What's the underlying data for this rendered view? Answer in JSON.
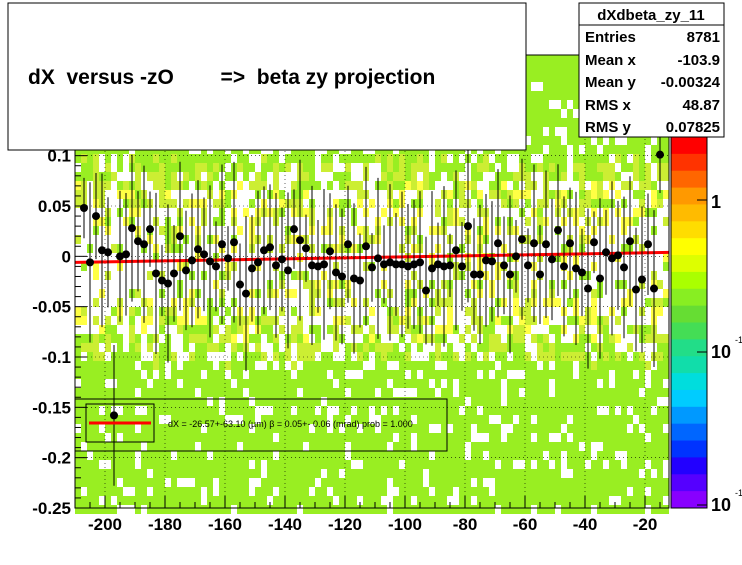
{
  "chart_data": {
    "type": "scatter",
    "title": "dX  versus -zO        =>  beta zy projection",
    "xlabel": "",
    "ylabel": "",
    "xlim": [
      -210,
      -12
    ],
    "ylim": [
      -0.25,
      0.2
    ],
    "x_ticks": [
      -200,
      -180,
      -160,
      -140,
      -120,
      -100,
      -80,
      -60,
      -40,
      -20
    ],
    "y_ticks": [
      -0.25,
      -0.2,
      -0.15,
      -0.1,
      -0.05,
      0,
      0.05,
      0.1
    ],
    "y_tick_labels": [
      "-0.25",
      "-0.2",
      "-0.15",
      "-0.1",
      "-0.05",
      "0",
      "0.05",
      "0.1"
    ],
    "grid": true,
    "stats": {
      "name": "dXdbeta_zy_11",
      "rows": [
        {
          "label": "Entries",
          "value": "8781"
        },
        {
          "label": "Mean x",
          "value": "-103.9"
        },
        {
          "label": "Mean y",
          "value": "-0.00324"
        },
        {
          "label": "RMS x",
          "value": "48.87"
        },
        {
          "label": "RMS y",
          "value": "0.07825"
        }
      ]
    },
    "palette_labels": [
      "1",
      "10"
    ],
    "palette_exponent": "-1",
    "fit": {
      "label": "dX = -26.57+-63.10 (µm) β =    0.05+- 0.06 (mrad) prob = 1.000",
      "intercept": -0.006,
      "slope": 5e-05,
      "color": "#ff0000"
    },
    "profile_points": {
      "x": [
        -207,
        -205,
        -203,
        -201,
        -199,
        -197,
        -195,
        -193,
        -191,
        -189,
        -187,
        -185,
        -183,
        -181,
        -179,
        -177,
        -175,
        -173,
        -171,
        -169,
        -167,
        -165,
        -163,
        -161,
        -159,
        -157,
        -155,
        -153,
        -151,
        -149,
        -147,
        -145,
        -143,
        -141,
        -139,
        -137,
        -135,
        -133,
        -131,
        -129,
        -127,
        -125,
        -123,
        -121,
        -119,
        -117,
        -115,
        -113,
        -111,
        -109,
        -107,
        -105,
        -103,
        -101,
        -99,
        -97,
        -95,
        -93,
        -91,
        -89,
        -87,
        -85,
        -83,
        -81,
        -79,
        -77,
        -75,
        -73,
        -71,
        -69,
        -67,
        -65,
        -63,
        -61,
        -59,
        -57,
        -55,
        -53,
        -51,
        -49,
        -47,
        -45,
        -43,
        -41,
        -39,
        -37,
        -35,
        -33,
        -31,
        -29,
        -27,
        -25,
        -23,
        -21,
        -19,
        -17,
        -15
      ],
      "y": [
        0.048,
        -0.006,
        0.04,
        0.006,
        0.004,
        -0.158,
        0.0,
        0.002,
        0.028,
        0.015,
        0.012,
        0.027,
        -0.017,
        -0.024,
        -0.027,
        -0.017,
        0.02,
        -0.014,
        -0.004,
        0.007,
        0.002,
        -0.005,
        -0.01,
        0.012,
        -0.002,
        0.014,
        -0.028,
        -0.037,
        -0.012,
        -0.006,
        0.006,
        0.009,
        -0.009,
        -0.003,
        -0.014,
        0.027,
        0.016,
        0.008,
        -0.009,
        -0.01,
        -0.008,
        0.005,
        -0.016,
        -0.02,
        0.012,
        -0.022,
        -0.024,
        0.01,
        -0.011,
        -0.002,
        -0.008,
        -0.006,
        -0.008,
        -0.008,
        -0.01,
        -0.008,
        -0.006,
        -0.034,
        -0.012,
        -0.008,
        -0.01,
        -0.009,
        0.006,
        -0.01,
        0.03,
        -0.018,
        -0.018,
        -0.004,
        -0.005,
        0.013,
        -0.009,
        -0.018,
        0.0,
        0.017,
        -0.009,
        0.013,
        -0.018,
        0.012,
        -0.003,
        0.026,
        -0.01,
        0.013,
        -0.012,
        -0.016,
        -0.032,
        0.014,
        -0.022,
        0.004,
        -0.002,
        0.001,
        -0.011,
        0.015,
        -0.033,
        -0.023,
        0.012,
        -0.032,
        0.101
      ]
    }
  }
}
